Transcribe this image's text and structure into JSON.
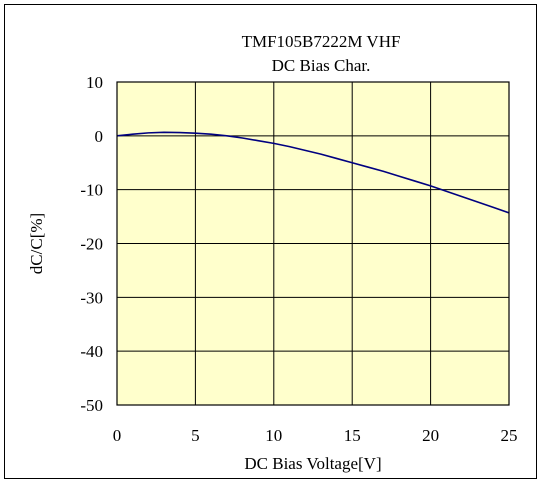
{
  "chart_data": {
    "type": "line",
    "title": "TMF105B7222M VHF",
    "subtitle": "DC Bias Char.",
    "xlabel": "DC Bias Voltage[V]",
    "ylabel": "dC/C[%]",
    "xlim": [
      0,
      25
    ],
    "ylim": [
      -50,
      10
    ],
    "xticks": [
      0,
      5,
      10,
      15,
      20,
      25
    ],
    "yticks": [
      10,
      0,
      -10,
      -20,
      -30,
      -40,
      -50
    ],
    "xtick_labels": [
      "0",
      "5",
      "10",
      "15",
      "20",
      "25"
    ],
    "ytick_labels": [
      "10",
      "0",
      "-10",
      "-20",
      "-30",
      "-40",
      "-50"
    ],
    "grid": true,
    "legend": false,
    "colors": {
      "plot_background": "#FFFFCC",
      "line": "#000080",
      "grid": "#000000"
    },
    "series": [
      {
        "x": [
          0,
          1,
          2,
          3,
          4,
          5,
          6,
          7,
          8,
          9,
          10,
          11,
          12,
          13,
          14,
          15,
          16,
          17,
          18,
          19,
          20,
          21,
          22,
          23,
          24,
          25
        ],
        "y": [
          0,
          0.3,
          0.55,
          0.65,
          0.6,
          0.5,
          0.3,
          0,
          -0.4,
          -0.9,
          -1.4,
          -2,
          -2.7,
          -3.4,
          -4.2,
          -5,
          -5.8,
          -6.6,
          -7.5,
          -8.4,
          -9.3,
          -10.3,
          -11.3,
          -12.3,
          -13.3,
          -14.3
        ]
      }
    ]
  }
}
